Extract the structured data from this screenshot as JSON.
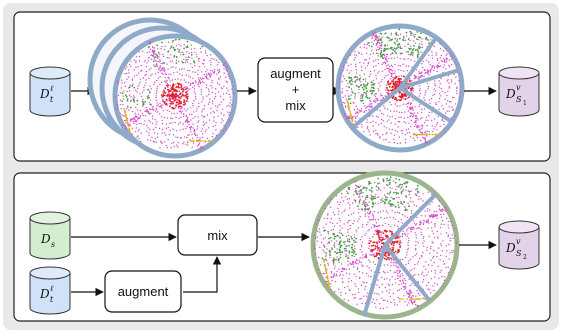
{
  "top_panel": {
    "source_db": {
      "symbol": "D",
      "superscript": "ℓ",
      "subscript": "t",
      "color": "#cfe2f7"
    },
    "process_box": {
      "line1": "augment",
      "line2": "+",
      "line3": "mix"
    },
    "output_db": {
      "symbol": "D",
      "superscript": "v",
      "subscript": "S",
      "subscript2": "1",
      "color": "#e3d3ea"
    }
  },
  "bottom_panel": {
    "source_db_s": {
      "symbol": "D",
      "subscript": "s",
      "color": "#d4ecd0"
    },
    "source_db_t": {
      "symbol": "D",
      "superscript": "ℓ",
      "subscript": "t",
      "color": "#cfe2f7"
    },
    "mix_box": {
      "label": "mix"
    },
    "augment_box": {
      "label": "augment"
    },
    "output_db": {
      "symbol": "D",
      "superscript": "v",
      "subscript": "S",
      "subscript2": "2",
      "color": "#e3d3ea"
    }
  },
  "colors": {
    "panel_bg": "#f2f2f2",
    "panel_border": "#222222",
    "scan_ring_blue": "#8fa9c8",
    "scan_ring_green": "#9bb58c",
    "point_magenta": "#d54bc9",
    "point_red": "#e02020",
    "point_green": "#3ca23c",
    "point_yellow": "#e0b020"
  }
}
